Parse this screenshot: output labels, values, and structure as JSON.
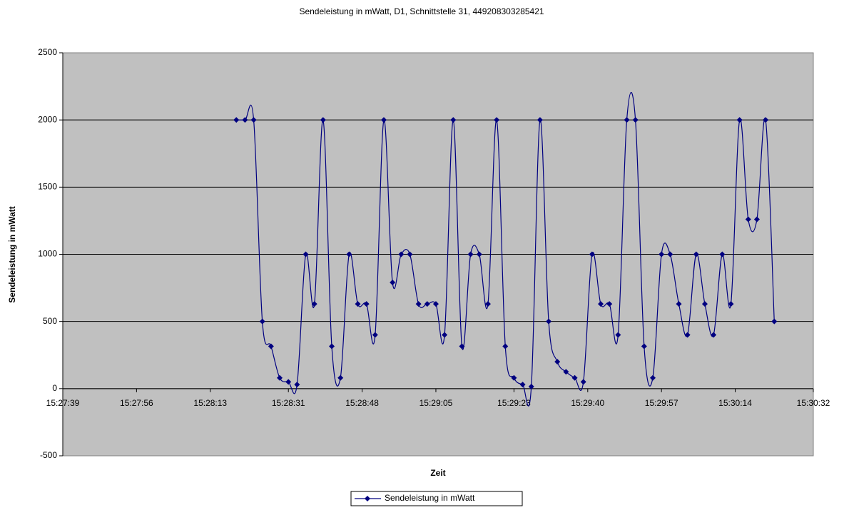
{
  "chart_data": {
    "type": "line",
    "title": "Sendeleistung in mWatt, D1, Schnittstelle 31, 449208303285421",
    "x_label": "Zeit",
    "y_label": "Sendeleistung in mWatt",
    "x": [
      "15:28:19",
      "15:28:21",
      "15:28:23",
      "15:28:25",
      "15:28:27",
      "15:28:29",
      "15:28:31",
      "15:28:33",
      "15:28:35",
      "15:28:37",
      "15:28:39",
      "15:28:41",
      "15:28:43",
      "15:28:45",
      "15:28:47",
      "15:28:49",
      "15:28:51",
      "15:28:53",
      "15:28:55",
      "15:28:57",
      "15:28:59",
      "15:29:01",
      "15:29:03",
      "15:29:05",
      "15:29:07",
      "15:29:09",
      "15:29:11",
      "15:29:13",
      "15:29:15",
      "15:29:17",
      "15:29:19",
      "15:29:21",
      "15:29:23",
      "15:29:25",
      "15:29:27",
      "15:29:29",
      "15:29:31",
      "15:29:33",
      "15:29:35",
      "15:29:37",
      "15:29:39",
      "15:29:41",
      "15:29:43",
      "15:29:45",
      "15:29:47",
      "15:29:49",
      "15:29:51",
      "15:29:53",
      "15:29:55",
      "15:29:57",
      "15:29:59",
      "15:30:01",
      "15:30:03",
      "15:30:05",
      "15:30:07",
      "15:30:09",
      "15:30:11",
      "15:30:13",
      "15:30:15",
      "15:30:17",
      "15:30:19",
      "15:30:21",
      "15:30:23"
    ],
    "series": [
      {
        "name": "Sendeleistung in mWatt",
        "color": "#000080",
        "values": [
          2000,
          2000,
          2000,
          500,
          315,
          80,
          50,
          30,
          1000,
          630,
          2000,
          315,
          80,
          1000,
          630,
          630,
          400,
          2000,
          790,
          1000,
          1000,
          630,
          630,
          630,
          400,
          2000,
          315,
          1000,
          1000,
          630,
          2000,
          315,
          80,
          30,
          15,
          2000,
          500,
          200,
          125,
          80,
          50,
          1000,
          630,
          630,
          400,
          2000,
          2000,
          315,
          80,
          1000,
          1000,
          630,
          400,
          1000,
          630,
          400,
          1000,
          630,
          2000,
          1260,
          1260,
          2000,
          500
        ]
      }
    ],
    "xlim": [
      "15:27:39",
      "15:30:32"
    ],
    "xticks": [
      "15:27:39",
      "15:27:56",
      "15:28:13",
      "15:28:31",
      "15:28:48",
      "15:29:05",
      "15:29:23",
      "15:29:40",
      "15:29:57",
      "15:30:14",
      "15:30:32"
    ],
    "ylim": [
      -500,
      2500
    ],
    "yticks": [
      -500,
      0,
      500,
      1000,
      1500,
      2000,
      2500
    ],
    "grid": true,
    "smooth": true,
    "plot_background": "#c0c0c0",
    "legend": "bottom"
  }
}
